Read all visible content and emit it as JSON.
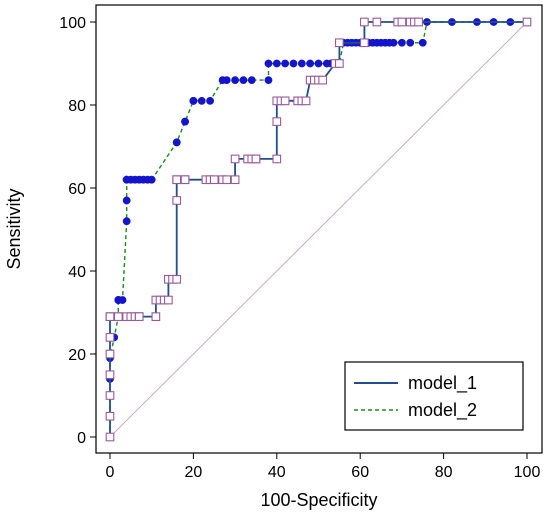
{
  "chart_data": {
    "type": "line",
    "title": "",
    "xlabel": "100-Specificity",
    "ylabel": "Sensitivity",
    "xlim": [
      0,
      100
    ],
    "ylim": [
      0,
      100
    ],
    "xticks": [
      "0",
      "20",
      "40",
      "60",
      "80",
      "100"
    ],
    "yticks": [
      "0",
      "20",
      "40",
      "60",
      "80",
      "100"
    ],
    "xtick_values": [
      0,
      20,
      40,
      60,
      80,
      100
    ],
    "ytick_values": [
      0,
      20,
      40,
      60,
      80,
      100
    ],
    "grid": false,
    "legend_position": "bottom-right",
    "reference_line": [
      [
        0,
        0
      ],
      [
        100,
        100
      ]
    ],
    "reference_color": "#c9a9c9",
    "series": [
      {
        "name": "model_1",
        "color": "#1f4e8c",
        "marker": "open-square",
        "marker_color": "#9a5a9a",
        "line_style": "solid",
        "x": [
          0,
          0,
          0,
          0,
          0,
          0,
          0,
          0,
          2,
          2,
          4,
          5,
          6,
          7,
          7,
          11,
          11,
          12,
          13,
          14,
          14,
          15,
          16,
          16,
          16,
          16,
          18,
          18,
          23,
          24,
          25,
          27,
          28,
          30,
          30,
          33,
          34,
          35,
          35,
          40,
          40,
          40,
          41,
          42,
          45,
          46,
          47,
          48,
          49,
          50,
          51,
          54,
          55,
          55,
          61,
          61,
          64,
          69,
          70,
          72,
          73,
          74,
          100
        ],
        "y": [
          0,
          5,
          10,
          15,
          20,
          24,
          29,
          29,
          29,
          29,
          29,
          29,
          29,
          29,
          29,
          29,
          33,
          33,
          33,
          33,
          38,
          38,
          38,
          57,
          62,
          62,
          62,
          62,
          62,
          62,
          62,
          62,
          62,
          62,
          67,
          67,
          67,
          67,
          67,
          67,
          76,
          81,
          81,
          81,
          81,
          81,
          81,
          86,
          86,
          86,
          86,
          90,
          90,
          95,
          95,
          100,
          100,
          100,
          100,
          100,
          100,
          100,
          100
        ]
      },
      {
        "name": "model_2",
        "color": "#1c8a1c",
        "marker": "filled-circle",
        "marker_color": "#1414cc",
        "line_style": "dashed",
        "x": [
          0,
          0,
          0,
          0,
          0,
          1,
          2,
          2,
          2,
          2,
          3,
          4,
          4,
          4,
          4,
          5,
          6,
          7,
          8,
          9,
          10,
          16,
          16,
          18,
          18,
          20,
          20,
          22,
          24,
          27,
          28,
          30,
          32,
          34,
          38,
          38,
          40,
          42,
          44,
          46,
          48,
          50,
          52,
          53,
          55,
          56,
          57,
          58,
          59,
          60,
          61,
          62,
          63,
          64,
          65,
          66,
          67,
          68,
          70,
          72,
          75,
          76,
          82,
          88,
          92,
          96,
          100
        ],
        "y": [
          0,
          5,
          10,
          14,
          19,
          24,
          29,
          33,
          33,
          33,
          33,
          52,
          57,
          62,
          62,
          62,
          62,
          62,
          62,
          62,
          62,
          71,
          71,
          76,
          76,
          81,
          81,
          81,
          81,
          86,
          86,
          86,
          86,
          86,
          86,
          90,
          90,
          90,
          90,
          90,
          90,
          90,
          90,
          90,
          90,
          95,
          95,
          95,
          95,
          95,
          95,
          95,
          95,
          95,
          95,
          95,
          95,
          95,
          95,
          95,
          95,
          100,
          100,
          100,
          100,
          100,
          100
        ]
      }
    ]
  }
}
